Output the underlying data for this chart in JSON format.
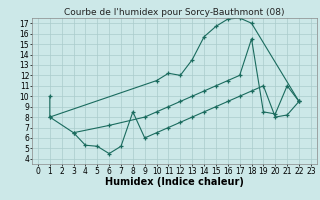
{
  "title": "Courbe de l'humidex pour Sorcy-Bauthmont (08)",
  "xlabel": "Humidex (Indice chaleur)",
  "xlim": [
    -0.5,
    23.5
  ],
  "ylim": [
    3.5,
    17.5
  ],
  "yticks": [
    4,
    5,
    6,
    7,
    8,
    9,
    10,
    11,
    12,
    13,
    14,
    15,
    16,
    17
  ],
  "xticks": [
    0,
    1,
    2,
    3,
    4,
    5,
    6,
    7,
    8,
    9,
    10,
    11,
    12,
    13,
    14,
    15,
    16,
    17,
    18,
    19,
    20,
    21,
    22,
    23
  ],
  "bg_color": "#cce8e8",
  "grid_color": "#aacccc",
  "line_color": "#1a6b5e",
  "line1": {
    "x": [
      1,
      1,
      10,
      11,
      12,
      13,
      14,
      15,
      16,
      17,
      18,
      22
    ],
    "y": [
      10,
      8,
      11.5,
      12.2,
      12.0,
      13.5,
      15.7,
      16.7,
      17.4,
      17.5,
      17.0,
      9.5
    ]
  },
  "line2": {
    "x": [
      1,
      3,
      6,
      9,
      10,
      11,
      12,
      13,
      14,
      15,
      16,
      17,
      18,
      19,
      20,
      21,
      22
    ],
    "y": [
      8,
      6.5,
      7.2,
      8.0,
      8.5,
      9.0,
      9.5,
      10.0,
      10.5,
      11.0,
      11.5,
      12.0,
      15.5,
      8.5,
      8.3,
      11.0,
      9.5
    ]
  },
  "line3": {
    "x": [
      3,
      4,
      5,
      6,
      7,
      8,
      9,
      10,
      11,
      12,
      13,
      14,
      15,
      16,
      17,
      18,
      19,
      20,
      21,
      22
    ],
    "y": [
      6.5,
      5.3,
      5.2,
      4.5,
      5.2,
      8.5,
      6.0,
      6.5,
      7.0,
      7.5,
      8.0,
      8.5,
      9.0,
      9.5,
      10.0,
      10.5,
      11.0,
      8.0,
      8.2,
      9.5
    ]
  },
  "title_fontsize": 6.5,
  "tick_fontsize": 5.5,
  "label_fontsize": 7
}
